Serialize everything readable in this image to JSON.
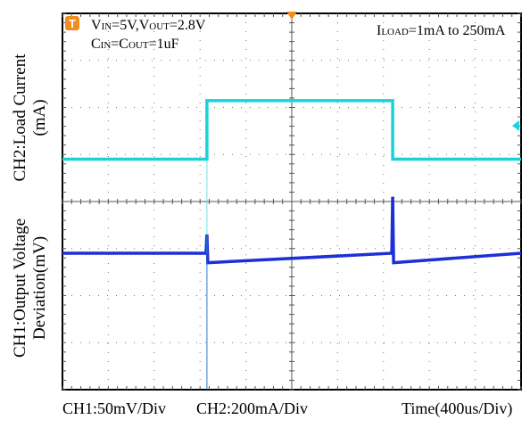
{
  "chart_data": [
    {
      "type": "line",
      "name": "CH2",
      "ylabel": "CH2:Load Current",
      "ylabel_unit": "(mA)",
      "scale": "CH2:200mA/Div",
      "annotation": "ILOAD=1mA to 250mA",
      "x_step": {
        "low_to_high_at_div": 3.15,
        "high_to_low_at_div": 7.2
      },
      "series": [
        {
          "values": [
            {
              "x_div": 0.0,
              "y_mA": 1
            },
            {
              "x_div": 3.15,
              "y_mA": 1
            },
            {
              "x_div": 3.15,
              "y_mA": 250
            },
            {
              "x_div": 7.2,
              "y_mA": 250
            },
            {
              "x_div": 7.2,
              "y_mA": 1
            },
            {
              "x_div": 10.0,
              "y_mA": 1
            }
          ],
          "color": "#19d3d8"
        }
      ]
    },
    {
      "type": "line",
      "name": "CH1",
      "ylabel": "CH1:Output Voltage",
      "ylabel_line2": "Deviation(mV)",
      "scale": "CH1:50mV/Div",
      "series": [
        {
          "values": [
            {
              "x_div": 0.0,
              "y_mV": 0
            },
            {
              "x_div": 3.13,
              "y_mV": 0
            },
            {
              "x_div": 3.15,
              "y_mV": 20
            },
            {
              "x_div": 3.17,
              "y_mV": -10
            },
            {
              "x_div": 7.18,
              "y_mV": 0
            },
            {
              "x_div": 7.2,
              "y_mV": 60
            },
            {
              "x_div": 7.22,
              "y_mV": -10
            },
            {
              "x_div": 10.0,
              "y_mV": 0
            }
          ],
          "color": "#1f2fd6"
        }
      ]
    }
  ],
  "conditions": {
    "vin_vout_main": "VIN=5V,VOUT=2.8V",
    "cin_cout_main": "CIN=COUT=1uF",
    "iload_main": "ILOAD=1mA to 250mA",
    "vin_v": "V",
    "vin_sub": "IN",
    "vin_rest": "=5V,V",
    "vout_sub": "OUT",
    "vout_rest": "=2.8V",
    "c_in": "C",
    "cin_sub": "IN",
    "c_mid": "=C",
    "cout_sub": "OUT",
    "cout_rest": "=1uF",
    "iload_i": "I",
    "iload_sub": "LOAD",
    "iload_rest": "=1mA to 250mA"
  },
  "timebase": "Time(400us/Div)",
  "ch1_scale": "CH1:50mV/Div",
  "ch2_scale": "CH2:200mA/Div",
  "ch2_ylabel_line1": "CH2:Load Current",
  "ch2_ylabel_line2": "(mA)",
  "ch1_ylabel_line1": "CH1:Output Voltage",
  "ch1_ylabel_line2": "Deviation(mV)",
  "trigger_marker": "T",
  "colors": {
    "grid_frame": "#000000",
    "ch2": "#19d3d8",
    "ch1": "#1f2fd6",
    "marker": "#f28c1f"
  }
}
